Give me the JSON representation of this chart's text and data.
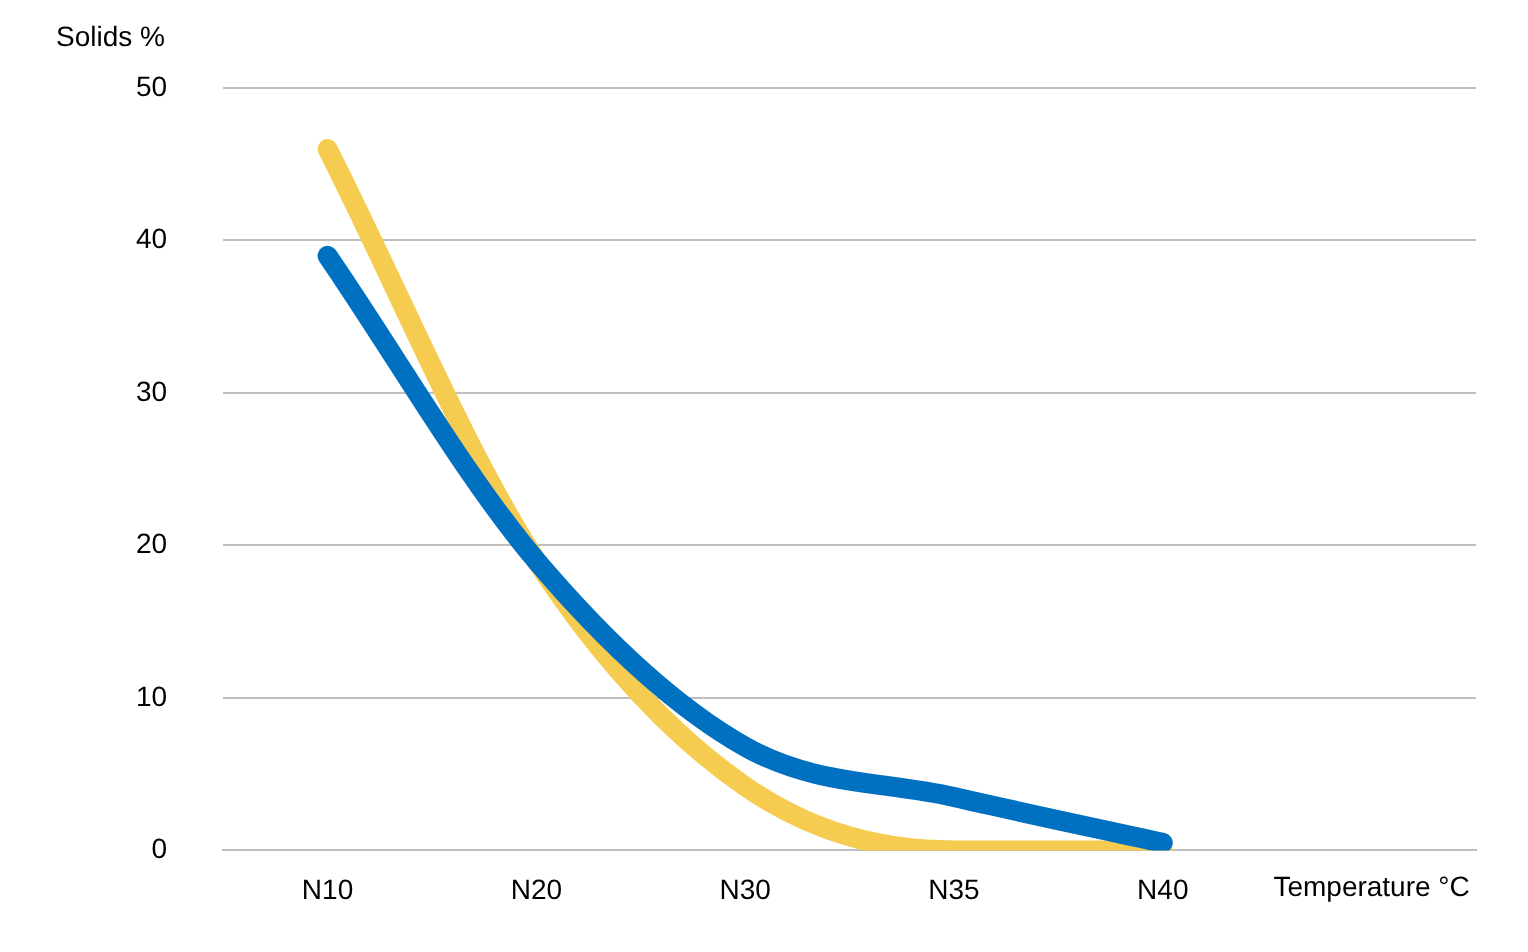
{
  "chart_data": {
    "type": "line",
    "ylabel": "Solids %",
    "xlabel": "Temperature °C",
    "categories": [
      "N10",
      "N20",
      "N30",
      "N35",
      "N40",
      null
    ],
    "series": [
      {
        "color": "#0070c0",
        "values": [
          39,
          19,
          6.8,
          3.5,
          0.5,
          null
        ]
      },
      {
        "color": "#f5cc4f",
        "values": [
          46,
          19,
          4.2,
          0,
          0,
          null
        ]
      }
    ],
    "ylim": [
      0,
      50
    ],
    "yticks": [
      0,
      10,
      20,
      30,
      40,
      50
    ],
    "grid": "y",
    "legend": false,
    "marker": "none",
    "line_style": "solid"
  }
}
